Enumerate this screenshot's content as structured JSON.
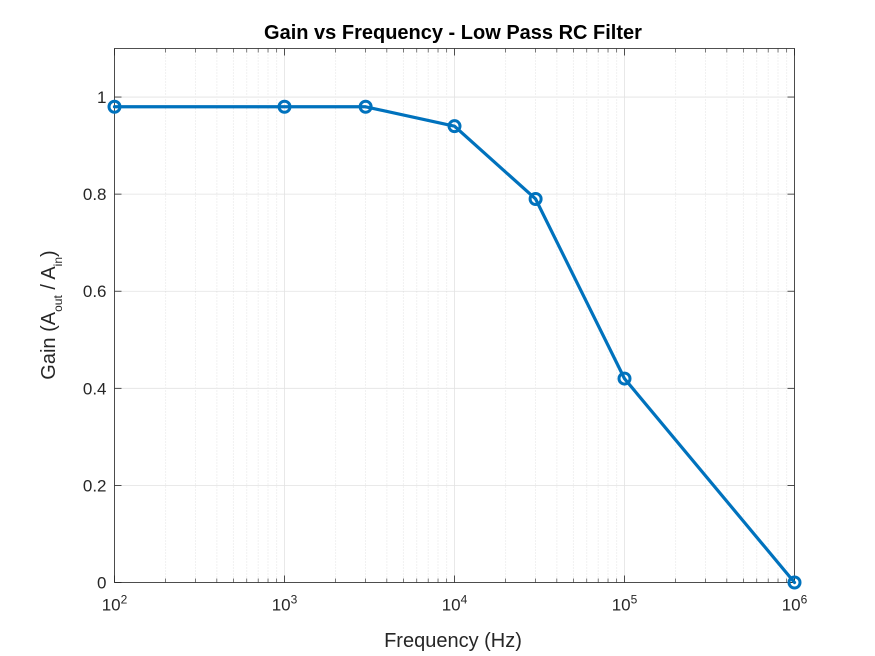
{
  "chart_data": {
    "type": "line",
    "title": "Gain vs Frequency - Low Pass RC Filter",
    "xlabel": "Frequency (Hz)",
    "ylabel": {
      "prefix": "Gain (A",
      "sub1": "out",
      "middle": " / A",
      "sub2": "in",
      "suffix": ")"
    },
    "x_scale": "log",
    "xlim": [
      100,
      1000000
    ],
    "ylim": [
      0,
      1.1
    ],
    "grid": true,
    "minor_grid": true,
    "x_ticks": [
      {
        "base": "10",
        "exp": "2",
        "value": 100
      },
      {
        "base": "10",
        "exp": "3",
        "value": 1000
      },
      {
        "base": "10",
        "exp": "4",
        "value": 10000
      },
      {
        "base": "10",
        "exp": "5",
        "value": 100000
      },
      {
        "base": "10",
        "exp": "6",
        "value": 1000000
      }
    ],
    "y_ticks": [
      {
        "label": "0",
        "value": 0
      },
      {
        "label": "0.2",
        "value": 0.2
      },
      {
        "label": "0.4",
        "value": 0.4
      },
      {
        "label": "0.6",
        "value": 0.6
      },
      {
        "label": "0.8",
        "value": 0.8
      },
      {
        "label": "1",
        "value": 1
      }
    ],
    "series": [
      {
        "color": "#0072BD",
        "marker": "circle",
        "x": [
          100,
          1000,
          3000,
          10000,
          30000,
          100000,
          1000000
        ],
        "y": [
          0.98,
          0.98,
          0.98,
          0.94,
          0.79,
          0.42,
          0
        ]
      }
    ]
  }
}
